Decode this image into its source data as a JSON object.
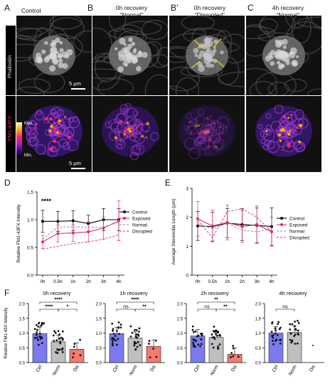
{
  "figure": {
    "panels": {
      "A": {
        "letter": "A",
        "title": "Control"
      },
      "B": {
        "letter": "B",
        "title_line1": "0h recovery",
        "title_line2": "“Normal”"
      },
      "Bp": {
        "letter": "B’",
        "title_line1": "0h recovery",
        "title_line2": "“Disrupted”"
      },
      "C": {
        "letter": "C",
        "title_line1": "4h recovery",
        "title_line2": "“Normal”"
      }
    },
    "row_labels": {
      "top": "Phalloidin",
      "bottom": "FM1-43FX"
    },
    "scale_bar_label": "5 μm",
    "colorbar": {
      "max": "Max.",
      "min": "Min."
    },
    "panel_D_letter": "D",
    "panel_E_letter": "E",
    "panel_F_letter": "F",
    "colors": {
      "control": "#000000",
      "exposed": "#e0287a",
      "normal": "#888888",
      "disrupted": "#e0287a",
      "ctrl_bar": "#7b7bf0",
      "norm_bar": "#bfbfbf",
      "dis_bar": "#f27a6e"
    }
  },
  "chart_data": [
    {
      "id": "D",
      "type": "line",
      "ylabel": "Relative FM1-43FX Intensity",
      "categories": [
        "0h",
        "0.5h",
        "1h",
        "2h",
        "3h",
        "4h"
      ],
      "ylim": [
        0,
        1.5
      ],
      "yticks": [
        "0.0",
        "0.5",
        "1.0",
        "1.5"
      ],
      "annotation": "****",
      "series": [
        {
          "name": "Control",
          "style": "solid-marker",
          "values": [
            0.97,
            0.97,
            0.98,
            0.93,
            1.0,
            1.0
          ],
          "err": [
            0.2,
            0.18,
            0.18,
            0.15,
            0.2,
            0.2
          ]
        },
        {
          "name": "Exposed",
          "style": "solid-marker",
          "values": [
            0.6,
            0.75,
            0.76,
            0.78,
            0.85,
            0.98
          ],
          "err": [
            0.12,
            0.15,
            0.15,
            0.18,
            0.2,
            0.36
          ]
        },
        {
          "name": "Normal",
          "style": "dashed",
          "values": [
            0.65,
            0.87,
            0.87,
            0.86,
            0.87,
            0.95
          ]
        },
        {
          "name": "Disrupted",
          "style": "dashed",
          "values": [
            0.47,
            0.52,
            0.57,
            0.6,
            0.65,
            0.73
          ]
        }
      ]
    },
    {
      "id": "E",
      "type": "line",
      "ylabel": "Average Stereocilia Length (µm)",
      "categories": [
        "0h",
        "0.5h",
        "1h",
        "2h",
        "3h",
        "4h"
      ],
      "ylim": [
        0,
        3
      ],
      "yticks": [
        "0",
        "1",
        "2",
        "3"
      ],
      "series": [
        {
          "name": "Control",
          "style": "solid-marker",
          "values": [
            1.7,
            1.68,
            1.8,
            1.75,
            1.72,
            1.68
          ],
          "err": [
            0.5,
            0.5,
            0.5,
            0.55,
            0.6,
            0.65
          ]
        },
        {
          "name": "Exposed",
          "style": "solid-marker",
          "values": [
            1.95,
            1.7,
            1.82,
            1.68,
            1.75,
            1.5
          ],
          "err": [
            0.6,
            0.55,
            0.6,
            0.55,
            0.65,
            0.5
          ]
        },
        {
          "name": "Normal",
          "style": "dashed",
          "values": [
            1.78,
            1.6,
            1.8,
            1.55,
            1.5,
            1.6
          ]
        },
        {
          "name": "Disrupted",
          "style": "dashed",
          "values": [
            1.9,
            1.3,
            2.2,
            2.3,
            2.0,
            1.5
          ]
        }
      ]
    },
    {
      "id": "F",
      "type": "bar",
      "ylabel": "Relative FM1-43X Intensity",
      "ylim": [
        0,
        2.0
      ],
      "yticks": [
        "0.0",
        "0.5",
        "1.0",
        "1.5",
        "2.0"
      ],
      "subplots": [
        {
          "title": "0h recovery",
          "categories": [
            "Ctrl",
            "Norm",
            "Dis"
          ],
          "values": [
            0.98,
            0.7,
            0.45
          ],
          "sig": [
            {
              "a": 0,
              "b": 1,
              "label": "****",
              "level": 1
            },
            {
              "a": 0,
              "b": 2,
              "label": "****",
              "level": 2
            },
            {
              "a": 1,
              "b": 2,
              "label": "*",
              "level": 1
            }
          ]
        },
        {
          "title": "1h recovery",
          "categories": [
            "Ctrl",
            "Norm",
            "Dis"
          ],
          "values": [
            0.98,
            0.83,
            0.55
          ],
          "sig": [
            {
              "a": 0,
              "b": 1,
              "label": "ns",
              "level": 1
            },
            {
              "a": 0,
              "b": 2,
              "label": "****",
              "level": 2
            },
            {
              "a": 1,
              "b": 2,
              "label": "**",
              "level": 1
            }
          ]
        },
        {
          "title": "2h recovery",
          "categories": [
            "Ctrl",
            "Norm",
            "Dis"
          ],
          "values": [
            0.9,
            0.85,
            0.28
          ],
          "sig": [
            {
              "a": 0,
              "b": 1,
              "label": "ns",
              "level": 1
            },
            {
              "a": 0,
              "b": 2,
              "label": "**",
              "level": 2
            },
            {
              "a": 1,
              "b": 2,
              "label": "**",
              "level": 1
            }
          ]
        },
        {
          "title": "4h recovery",
          "categories": [
            "Ctrl",
            "Norm",
            "Dis"
          ],
          "values": [
            1.0,
            1.02,
            0
          ],
          "sig": [
            {
              "a": 0,
              "b": 1,
              "label": "ns",
              "level": 1
            }
          ]
        }
      ]
    }
  ]
}
